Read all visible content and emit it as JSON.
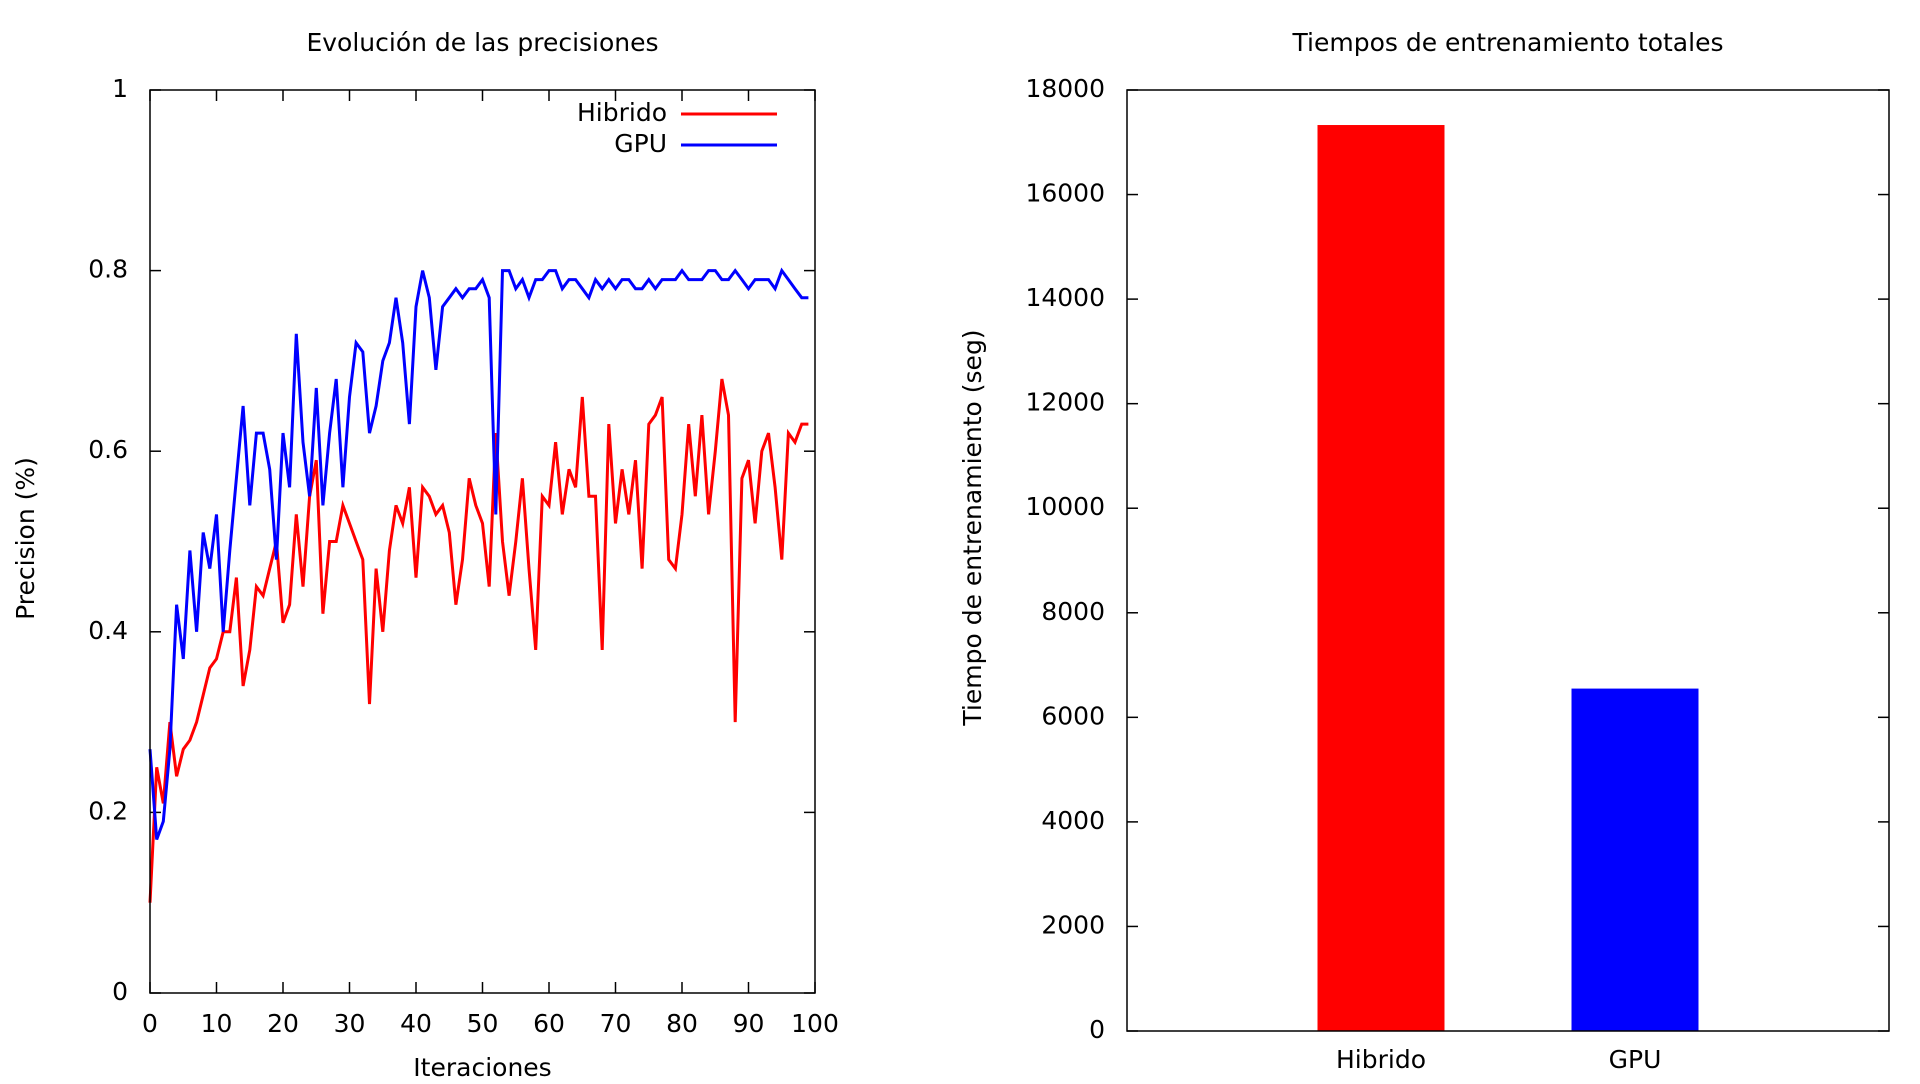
{
  "chart_data": [
    {
      "type": "line",
      "title": "Evolución de las precisiones",
      "xlabel": "Iteraciones",
      "ylabel": "Precision (%)",
      "x": [
        0,
        1,
        2,
        3,
        4,
        5,
        6,
        7,
        8,
        9,
        10,
        11,
        12,
        13,
        14,
        15,
        16,
        17,
        18,
        19,
        20,
        21,
        22,
        23,
        24,
        25,
        26,
        27,
        28,
        29,
        30,
        31,
        32,
        33,
        34,
        35,
        36,
        37,
        38,
        39,
        40,
        41,
        42,
        43,
        44,
        45,
        46,
        47,
        48,
        49,
        50,
        51,
        52,
        53,
        54,
        55,
        56,
        57,
        58,
        59,
        60,
        61,
        62,
        63,
        64,
        65,
        66,
        67,
        68,
        69,
        70,
        71,
        72,
        73,
        74,
        75,
        76,
        77,
        78,
        79,
        80,
        81,
        82,
        83,
        84,
        85,
        86,
        87,
        88,
        89,
        90,
        91,
        92,
        93,
        94,
        95,
        96,
        97,
        98,
        99
      ],
      "series": [
        {
          "name": "Hibrido",
          "color": "#ff0000",
          "values": [
            0.1,
            0.25,
            0.21,
            0.3,
            0.24,
            0.27,
            0.28,
            0.3,
            0.33,
            0.36,
            0.37,
            0.4,
            0.4,
            0.46,
            0.34,
            0.38,
            0.45,
            0.44,
            0.47,
            0.5,
            0.41,
            0.43,
            0.53,
            0.45,
            0.55,
            0.59,
            0.42,
            0.5,
            0.5,
            0.54,
            0.52,
            0.5,
            0.48,
            0.32,
            0.47,
            0.4,
            0.49,
            0.54,
            0.52,
            0.56,
            0.46,
            0.56,
            0.55,
            0.53,
            0.54,
            0.51,
            0.43,
            0.48,
            0.57,
            0.54,
            0.52,
            0.45,
            0.62,
            0.5,
            0.44,
            0.5,
            0.57,
            0.47,
            0.38,
            0.55,
            0.54,
            0.61,
            0.53,
            0.58,
            0.56,
            0.66,
            0.55,
            0.55,
            0.38,
            0.63,
            0.52,
            0.58,
            0.53,
            0.59,
            0.47,
            0.63,
            0.64,
            0.66,
            0.48,
            0.47,
            0.53,
            0.63,
            0.55,
            0.64,
            0.53,
            0.6,
            0.68,
            0.64,
            0.3,
            0.57,
            0.59,
            0.52,
            0.6,
            0.62,
            0.56,
            0.48,
            0.62,
            0.61,
            0.63,
            0.63
          ]
        },
        {
          "name": "GPU",
          "color": "#0000ff",
          "values": [
            0.27,
            0.17,
            0.19,
            0.27,
            0.43,
            0.37,
            0.49,
            0.4,
            0.51,
            0.47,
            0.53,
            0.4,
            0.49,
            0.57,
            0.65,
            0.54,
            0.62,
            0.62,
            0.58,
            0.48,
            0.62,
            0.56,
            0.73,
            0.61,
            0.55,
            0.67,
            0.54,
            0.62,
            0.68,
            0.56,
            0.66,
            0.72,
            0.71,
            0.62,
            0.65,
            0.7,
            0.72,
            0.77,
            0.72,
            0.63,
            0.76,
            0.8,
            0.77,
            0.69,
            0.76,
            0.77,
            0.78,
            0.77,
            0.78,
            0.78,
            0.79,
            0.77,
            0.53,
            0.8,
            0.8,
            0.78,
            0.79,
            0.77,
            0.79,
            0.79,
            0.8,
            0.8,
            0.78,
            0.79,
            0.79,
            0.78,
            0.77,
            0.79,
            0.78,
            0.79,
            0.78,
            0.79,
            0.79,
            0.78,
            0.78,
            0.79,
            0.78,
            0.79,
            0.79,
            0.79,
            0.8,
            0.79,
            0.79,
            0.79,
            0.8,
            0.8,
            0.79,
            0.79,
            0.8,
            0.79,
            0.78,
            0.79,
            0.79,
            0.79,
            0.78,
            0.8,
            0.79,
            0.78,
            0.77,
            0.77
          ]
        }
      ],
      "xlim": [
        0,
        100
      ],
      "xticks": [
        0,
        10,
        20,
        30,
        40,
        50,
        60,
        70,
        80,
        90,
        100
      ],
      "ylim": [
        0,
        1
      ],
      "yticks": [
        0,
        0.2,
        0.4,
        0.6,
        0.8,
        1
      ],
      "legend": "top right"
    },
    {
      "type": "bar",
      "title": "Tiempos de entrenamiento totales",
      "ylabel": "Tiempo de entrenamiento (seg)",
      "categories": [
        "Hibrido",
        "GPU"
      ],
      "values": [
        17330,
        6550
      ],
      "colors": [
        "#ff0000",
        "#0000ff"
      ],
      "ylim": [
        0,
        18000
      ],
      "yticks": [
        0,
        2000,
        4000,
        6000,
        8000,
        10000,
        12000,
        14000,
        16000,
        18000
      ]
    }
  ]
}
